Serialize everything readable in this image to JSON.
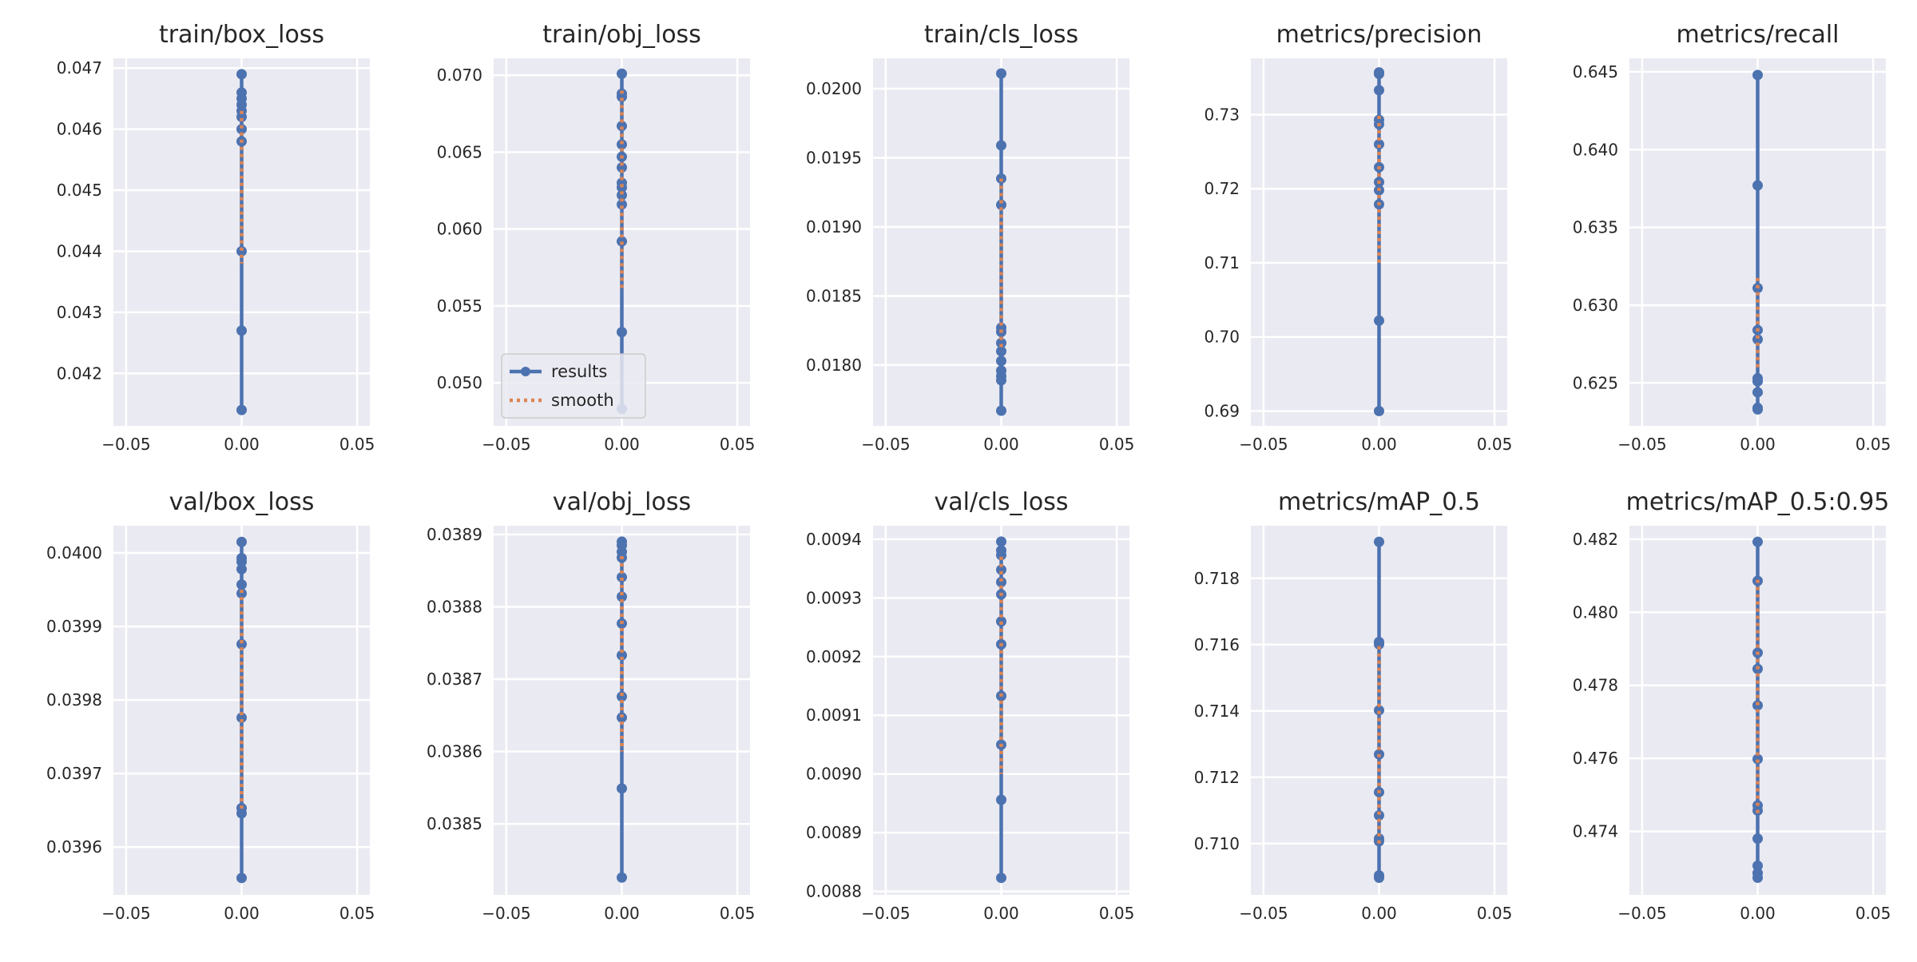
{
  "chart_data": [
    {
      "type": "line",
      "title": "train/box_loss",
      "x": [
        0,
        0,
        0,
        0,
        0,
        0,
        0,
        0,
        0,
        0,
        0
      ],
      "series": [
        {
          "name": "results",
          "color": "#4c72b0",
          "values": [
            0.0469,
            0.0466,
            0.0465,
            0.0464,
            0.0463,
            0.0462,
            0.046,
            0.0458,
            0.044,
            0.0427,
            0.0414
          ]
        },
        {
          "name": "smooth",
          "color": "#dd8452",
          "values": [
            0.0463,
            0.0463,
            0.0463,
            0.0462,
            0.0462,
            0.0461,
            0.046,
            0.0459,
            0.0454,
            0.0446,
            0.0438
          ]
        }
      ],
      "xlim": [
        -0.0555,
        0.0555
      ],
      "xticks": [
        {
          "value": -0.05,
          "label": "−0.05"
        },
        {
          "value": 0,
          "label": "0.00"
        },
        0.05
      ],
      "ylim": [
        0.04114,
        0.04716
      ],
      "yticks": [
        0.042,
        0.043,
        0.044,
        0.045,
        0.046,
        0.047
      ],
      "grid": true
    },
    {
      "type": "line",
      "title": "train/obj_loss",
      "x": [
        0,
        0,
        0,
        0,
        0,
        0,
        0,
        0,
        0,
        0,
        0,
        0,
        0,
        0
      ],
      "series": [
        {
          "name": "results",
          "color": "#4c72b0",
          "values": [
            0.0701,
            0.0688,
            0.0686,
            0.0667,
            0.0655,
            0.0647,
            0.064,
            0.063,
            0.0627,
            0.0622,
            0.0616,
            0.0592,
            0.0533,
            0.0483
          ]
        },
        {
          "name": "smooth",
          "color": "#dd8452",
          "values": [
            0.069,
            0.0687,
            0.0684,
            0.068,
            0.0676,
            0.0671,
            0.0666,
            0.066,
            0.0653,
            0.0645,
            0.0636,
            0.0622,
            0.06,
            0.056
          ]
        }
      ],
      "xlim": [
        -0.0555,
        0.0555
      ],
      "xticks": [
        {
          "value": -0.05,
          "label": "−0.05"
        },
        {
          "value": 0,
          "label": "0.00"
        },
        0.05
      ],
      "ylim": [
        0.0472,
        0.0711
      ],
      "yticks": [
        {
          "value": 0.05,
          "label": "0.050"
        },
        0.055,
        {
          "value": 0.06,
          "label": "0.060"
        },
        0.065,
        {
          "value": 0.07,
          "label": "0.070"
        }
      ],
      "grid": true,
      "legend": "lower left"
    },
    {
      "type": "line",
      "title": "train/cls_loss",
      "x": [
        0,
        0,
        0,
        0,
        0,
        0,
        0,
        0,
        0,
        0,
        0,
        0,
        0
      ],
      "series": [
        {
          "name": "results",
          "color": "#4c72b0",
          "values": [
            0.02011,
            0.01959,
            0.01935,
            0.01916,
            0.01827,
            0.01824,
            0.01816,
            0.0181,
            0.01803,
            0.01796,
            0.01792,
            0.01789,
            0.01767
          ]
        },
        {
          "name": "smooth",
          "color": "#dd8452",
          "values": [
            0.01935,
            0.0193,
            0.01922,
            0.01912,
            0.01898,
            0.01885,
            0.0187,
            0.01857,
            0.01845,
            0.01835,
            0.01826,
            0.01818,
            0.0181
          ]
        }
      ],
      "xlim": [
        -0.0555,
        0.0555
      ],
      "xticks": [
        {
          "value": -0.05,
          "label": "−0.05"
        },
        {
          "value": 0,
          "label": "0.00"
        },
        0.05
      ],
      "ylim": [
        0.01756,
        0.02022
      ],
      "yticks": [
        {
          "value": 0.018,
          "label": "0.0180"
        },
        0.0185,
        {
          "value": 0.019,
          "label": "0.0190"
        },
        0.0195,
        {
          "value": 0.02,
          "label": "0.0200"
        }
      ],
      "grid": true
    },
    {
      "type": "line",
      "title": "metrics/precision",
      "x": [
        0,
        0,
        0,
        0,
        0,
        0,
        0,
        0,
        0,
        0,
        0,
        0
      ],
      "series": [
        {
          "name": "results",
          "color": "#4c72b0",
          "values": [
            0.69,
            0.7022,
            0.7179,
            0.7198,
            0.7209,
            0.7229,
            0.726,
            0.7287,
            0.7293,
            0.7333,
            0.7355,
            0.7357
          ]
        },
        {
          "name": "smooth",
          "color": "#dd8452",
          "values": [
            0.71,
            0.713,
            0.716,
            0.7185,
            0.7205,
            0.7222,
            0.724,
            0.7256,
            0.7268,
            0.7282,
            0.7294,
            0.73
          ]
        }
      ],
      "xlim": [
        -0.0555,
        0.0555
      ],
      "xticks": [
        {
          "value": -0.05,
          "label": "−0.05"
        },
        {
          "value": 0,
          "label": "0.00"
        },
        0.05
      ],
      "ylim": [
        0.688,
        0.7376
      ],
      "yticks": [
        0.69,
        {
          "value": 0.7,
          "label": "0.70"
        },
        0.71,
        0.72,
        0.73
      ],
      "grid": true
    },
    {
      "type": "line",
      "title": "metrics/recall",
      "x": [
        0,
        0,
        0,
        0,
        0,
        0,
        0,
        0,
        0,
        0
      ],
      "series": [
        {
          "name": "results",
          "color": "#4c72b0",
          "values": [
            0.6233,
            0.6234,
            0.6244,
            0.6251,
            0.6253,
            0.6278,
            0.6284,
            0.6311,
            0.6377,
            0.6448
          ]
        },
        {
          "name": "smooth",
          "color": "#dd8452",
          "values": [
            0.626,
            0.6262,
            0.6265,
            0.6268,
            0.6272,
            0.6278,
            0.6284,
            0.6292,
            0.6305,
            0.632
          ]
        }
      ],
      "xlim": [
        -0.0555,
        0.0555
      ],
      "xticks": [
        {
          "value": -0.05,
          "label": "−0.05"
        },
        {
          "value": 0,
          "label": "0.00"
        },
        0.05
      ],
      "ylim": [
        0.62224,
        0.64587
      ],
      "yticks": [
        0.625,
        {
          "value": 0.63,
          "label": "0.630"
        },
        0.635,
        {
          "value": 0.64,
          "label": "0.640"
        },
        0.645
      ],
      "grid": true
    },
    {
      "type": "line",
      "title": "val/box_loss",
      "x": [
        0,
        0,
        0,
        0,
        0,
        0,
        0,
        0,
        0,
        0,
        0
      ],
      "series": [
        {
          "name": "results",
          "color": "#4c72b0",
          "values": [
            0.040015,
            0.039993,
            0.039988,
            0.039978,
            0.039957,
            0.039945,
            0.039876,
            0.039776,
            0.039653,
            0.039646,
            0.039558
          ]
        },
        {
          "name": "smooth",
          "color": "#dd8452",
          "values": [
            0.03995,
            0.03994,
            0.03993,
            0.03991,
            0.03989,
            0.03986,
            0.03982,
            0.03977,
            0.03972,
            0.03968,
            0.03965
          ]
        }
      ],
      "xlim": [
        -0.0555,
        0.0555
      ],
      "xticks": [
        {
          "value": -0.05,
          "label": "−0.05"
        },
        {
          "value": 0,
          "label": "0.00"
        },
        0.05
      ],
      "ylim": [
        0.039535,
        0.040037
      ],
      "yticks": [
        0.0396,
        0.0397,
        0.0398,
        0.0399,
        {
          "value": 0.04,
          "label": "0.0400"
        }
      ],
      "grid": true
    },
    {
      "type": "line",
      "title": "val/obj_loss",
      "x": [
        0,
        0,
        0,
        0,
        0,
        0,
        0,
        0,
        0,
        0,
        0,
        0
      ],
      "series": [
        {
          "name": "results",
          "color": "#4c72b0",
          "values": [
            0.03889,
            0.038885,
            0.038876,
            0.038868,
            0.038841,
            0.038814,
            0.038777,
            0.038733,
            0.038676,
            0.038647,
            0.038549,
            0.038426
          ]
        },
        {
          "name": "smooth",
          "color": "#dd8452",
          "values": [
            0.03887,
            0.03886,
            0.03885,
            0.03883,
            0.03881,
            0.03878,
            0.03875,
            0.03871,
            0.03867,
            0.03863,
            0.03861,
            0.0386
          ]
        }
      ],
      "xlim": [
        -0.0555,
        0.0555
      ],
      "xticks": [
        {
          "value": -0.05,
          "label": "−0.05"
        },
        {
          "value": 0,
          "label": "0.00"
        },
        0.05
      ],
      "ylim": [
        0.038402,
        0.038912
      ],
      "yticks": [
        0.0385,
        0.0386,
        0.0387,
        0.0388,
        0.0389
      ],
      "grid": true
    },
    {
      "type": "line",
      "title": "val/cls_loss",
      "x": [
        0,
        0,
        0,
        0,
        0,
        0,
        0,
        0,
        0,
        0,
        0,
        0
      ],
      "series": [
        {
          "name": "results",
          "color": "#4c72b0",
          "values": [
            0.009396,
            0.009381,
            0.009373,
            0.009348,
            0.009327,
            0.009306,
            0.00926,
            0.009221,
            0.009133,
            0.00905,
            0.008956,
            0.008823
          ]
        },
        {
          "name": "smooth",
          "color": "#dd8452",
          "values": [
            0.00937,
            0.00936,
            0.00935,
            0.00933,
            0.00931,
            0.00928,
            0.00925,
            0.00921,
            0.00916,
            0.0091,
            0.00905,
            0.009
          ]
        }
      ],
      "xlim": [
        -0.0555,
        0.0555
      ],
      "xticks": [
        {
          "value": -0.05,
          "label": "−0.05"
        },
        {
          "value": 0,
          "label": "0.00"
        },
        0.05
      ],
      "ylim": [
        0.008794,
        0.009423
      ],
      "yticks": [
        0.0088,
        0.0089,
        {
          "value": 0.009,
          "label": "0.0090"
        },
        0.0091,
        0.0092,
        0.0093,
        0.0094
      ],
      "grid": true
    },
    {
      "type": "line",
      "title": "metrics/mAP_0.5",
      "x": [
        0,
        0,
        0,
        0,
        0,
        0,
        0,
        0,
        0,
        0,
        0
      ],
      "series": [
        {
          "name": "results",
          "color": "#4c72b0",
          "values": [
            0.70897,
            0.70904,
            0.71007,
            0.71015,
            0.71085,
            0.71155,
            0.71269,
            0.71402,
            0.71601,
            0.71608,
            0.7191
          ]
        },
        {
          "name": "smooth",
          "color": "#dd8452",
          "values": [
            0.71,
            0.7102,
            0.7106,
            0.711,
            0.7116,
            0.7122,
            0.713,
            0.7138,
            0.7146,
            0.7153,
            0.716
          ]
        }
      ],
      "xlim": [
        -0.0555,
        0.0555
      ],
      "xticks": [
        {
          "value": -0.05,
          "label": "−0.05"
        },
        {
          "value": 0,
          "label": "0.00"
        },
        0.05
      ],
      "ylim": [
        0.708452,
        0.719585
      ],
      "yticks": [
        {
          "value": 0.71,
          "label": "0.710"
        },
        0.712,
        0.714,
        0.716,
        0.718
      ],
      "grid": true
    },
    {
      "type": "line",
      "title": "metrics/mAP_0.5:0.95",
      "x": [
        0,
        0,
        0,
        0,
        0,
        0,
        0,
        0,
        0,
        0,
        0,
        0
      ],
      "series": [
        {
          "name": "results",
          "color": "#4c72b0",
          "values": [
            0.47273,
            0.47286,
            0.47306,
            0.4738,
            0.47457,
            0.47471,
            0.47598,
            0.47745,
            0.47845,
            0.47889,
            0.48086,
            0.48193
          ]
        },
        {
          "name": "smooth",
          "color": "#dd8452",
          "values": [
            0.4745,
            0.4748,
            0.4752,
            0.4757,
            0.4763,
            0.4769,
            0.4776,
            0.4783,
            0.479,
            0.4797,
            0.4804,
            0.481
          ]
        }
      ],
      "xlim": [
        -0.0555,
        0.0555
      ],
      "xticks": [
        {
          "value": -0.05,
          "label": "−0.05"
        },
        {
          "value": 0,
          "label": "0.00"
        },
        0.05
      ],
      "ylim": [
        0.47226,
        0.48237
      ],
      "yticks": [
        0.474,
        0.476,
        0.478,
        {
          "value": 0.48,
          "label": "0.480"
        },
        0.482
      ],
      "grid": true
    }
  ]
}
